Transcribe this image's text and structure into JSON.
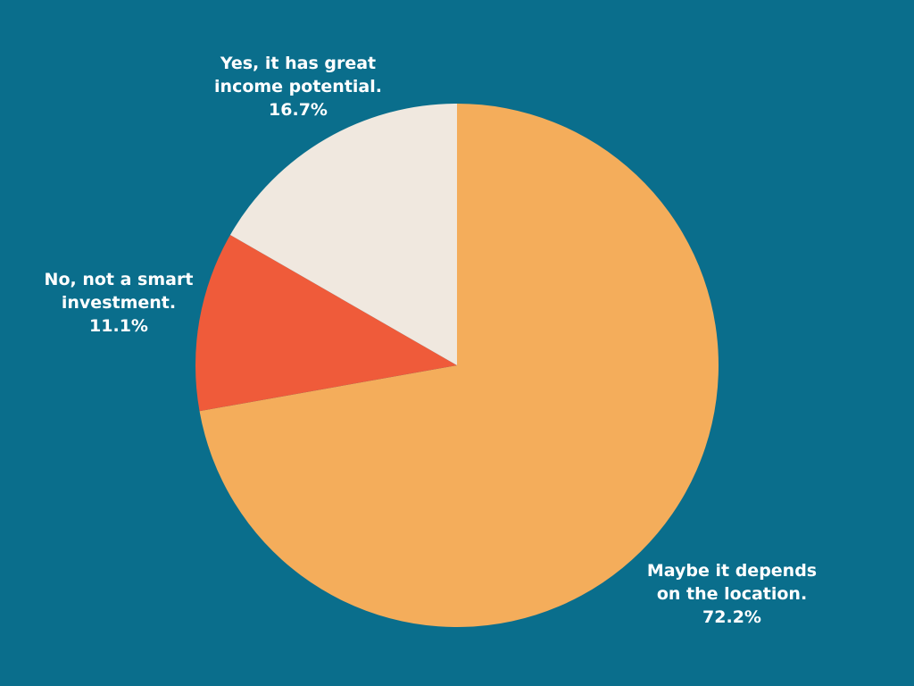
{
  "colors": {
    "background": "#0a6e8c"
  },
  "chart_data": {
    "type": "pie",
    "title": "",
    "slices": [
      {
        "label_lines": [
          "Maybe it depends",
          "on the location."
        ],
        "value": 72.2,
        "value_label": "72.2%",
        "color": "#f4ad5b"
      },
      {
        "label_lines": [
          "No, not a smart",
          "investment."
        ],
        "value": 11.1,
        "value_label": "11.1%",
        "color": "#ef5b3a"
      },
      {
        "label_lines": [
          "Yes, it has great",
          "income potential."
        ],
        "value": 16.7,
        "value_label": "16.7%",
        "color": "#f0e8df"
      }
    ]
  }
}
